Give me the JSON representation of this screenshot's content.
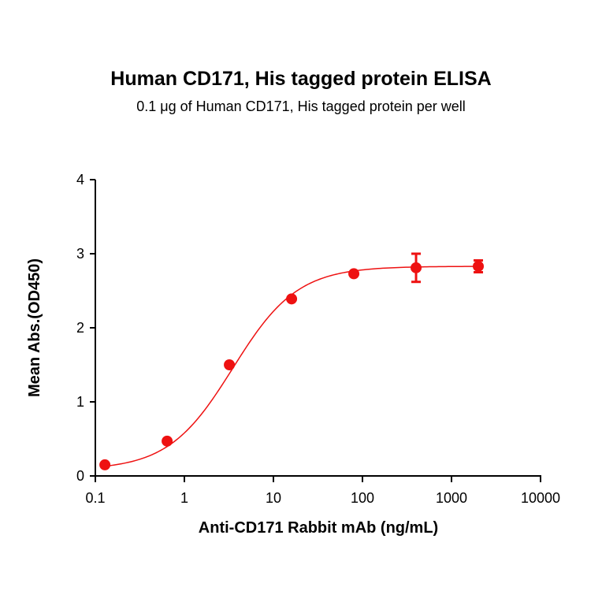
{
  "chart_data": {
    "type": "scatter",
    "title": "Human CD171, His tagged protein ELISA",
    "subtitle": "0.1 μg of Human CD171, His tagged protein per well",
    "xlabel": "Anti-CD171 Rabbit mAb (ng/mL)",
    "ylabel": "Mean Abs.(OD450)",
    "x_scale": "log",
    "xlim": [
      0.1,
      10000
    ],
    "ylim": [
      0,
      4
    ],
    "x_ticks": [
      "0.1",
      "1",
      "10",
      "100",
      "1000",
      "10000"
    ],
    "y_ticks": [
      "0",
      "1",
      "2",
      "3",
      "4"
    ],
    "grid": false,
    "legend": "none",
    "series": [
      {
        "color": "#ee1111",
        "points": [
          {
            "x": 0.128,
            "y": 0.15,
            "err": 0.0
          },
          {
            "x": 0.64,
            "y": 0.47,
            "err": 0.0
          },
          {
            "x": 3.2,
            "y": 1.5,
            "err": 0.0
          },
          {
            "x": 16,
            "y": 2.39,
            "err": 0.0
          },
          {
            "x": 80,
            "y": 2.73,
            "err": 0.0
          },
          {
            "x": 400,
            "y": 2.81,
            "err": 0.19
          },
          {
            "x": 2000,
            "y": 2.83,
            "err": 0.08
          }
        ],
        "fit": {
          "type": "4PL",
          "bottom": 0.08,
          "top": 2.83,
          "ec50": 3.5,
          "hill": 1.2
        }
      }
    ]
  }
}
